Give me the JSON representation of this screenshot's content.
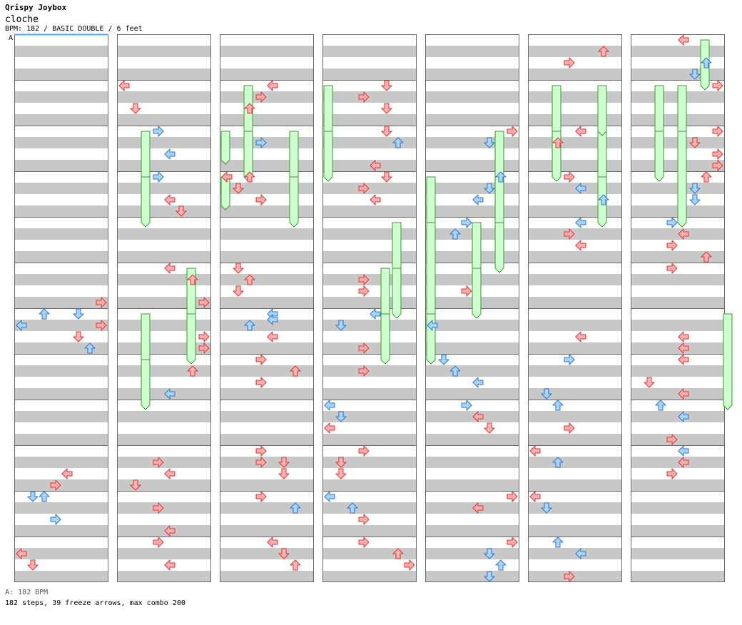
{
  "header": {
    "artist": "Qrispy Joybox",
    "title": "cloche",
    "info": "BPM: 182 / BASIC DOUBLE / 6 feet",
    "section_marker": "A"
  },
  "footer": {
    "bpm_line": "A: 182 BPM",
    "stats_line": "182 steps, 39 freeze arrows, max combo 200"
  },
  "colors": {
    "stripe_gray": "#c8c8c8",
    "measure_line": "#666666",
    "red_arrow_fill": "#ffb0b0",
    "red_arrow_stroke": "#e03030",
    "blue_arrow_fill": "#a8d4ff",
    "blue_arrow_stroke": "#2878c8",
    "freeze_fill": "#ccffcc",
    "freeze_stroke": "#3c963c",
    "bpm_marker": "#4da6ff"
  },
  "chart_data": {
    "type": "step-chart",
    "mode": "BASIC DOUBLE",
    "bpm": 182,
    "difficulty_feet": 6,
    "columns": 7,
    "measures_per_column": 12,
    "lanes": 8,
    "totals": {
      "steps": 182,
      "freeze_arrows": 39,
      "max_combo": 200
    },
    "freezes": [
      [
        0,
        40,
        4,
        4
      ],
      [
        0,
        40,
        5,
        4
      ],
      [
        0,
        32,
        5,
        4
      ],
      [
        0,
        32,
        6,
        4
      ],
      [
        1,
        2,
        6,
        4
      ],
      [
        1,
        2,
        7,
        4
      ],
      [
        1,
        6,
        5,
        4
      ],
      [
        1,
        6,
        6,
        4
      ],
      [
        1,
        2,
        2,
        4
      ],
      [
        1,
        2,
        3,
        4
      ],
      [
        2,
        0,
        2,
        0
      ],
      [
        2,
        0,
        3,
        0
      ],
      [
        2,
        2,
        1,
        4
      ],
      [
        2,
        2,
        2,
        4
      ],
      [
        2,
        6,
        2,
        4
      ],
      [
        2,
        6,
        3,
        4
      ],
      [
        3,
        0,
        1,
        4
      ],
      [
        3,
        0,
        2,
        4
      ],
      [
        3,
        6,
        4,
        4
      ],
      [
        3,
        6,
        5,
        4
      ],
      [
        4,
        0,
        3,
        4
      ],
      [
        4,
        0,
        4,
        4
      ],
      [
        4,
        0,
        4,
        12
      ],
      [
        4,
        0,
        6,
        4
      ],
      [
        4,
        6,
        2,
        4
      ],
      [
        4,
        6,
        3,
        4
      ],
      [
        4,
        6,
        4,
        4
      ],
      [
        5,
        6,
        2,
        4
      ],
      [
        5,
        6,
        3,
        4
      ],
      [
        5,
        2,
        1,
        4
      ],
      [
        5,
        2,
        2,
        4
      ],
      [
        5,
        6,
        1,
        4
      ],
      [
        6,
        6,
        0,
        0
      ],
      [
        6,
        6,
        0,
        4
      ],
      [
        6,
        2,
        1,
        4
      ],
      [
        6,
        2,
        2,
        4
      ],
      [
        6,
        4,
        1,
        8
      ],
      [
        6,
        4,
        2,
        8
      ],
      [
        6,
        8,
        6,
        8
      ]
    ]
  },
  "notes": [
    [
      0,
      5,
      6,
      7,
      "R"
    ],
    [
      0,
      5,
      8,
      5,
      "B"
    ],
    [
      0,
      5,
      10,
      0,
      "B"
    ],
    [
      0,
      6,
      0,
      2,
      "B"
    ],
    [
      0,
      6,
      2,
      7,
      "R"
    ],
    [
      0,
      6,
      4,
      5,
      "R"
    ],
    [
      0,
      6,
      6,
      6,
      "B"
    ],
    [
      0,
      9,
      4,
      4,
      "R"
    ],
    [
      0,
      9,
      6,
      3,
      "R"
    ],
    [
      0,
      9,
      8,
      2,
      "B"
    ],
    [
      0,
      10,
      0,
      1,
      "B"
    ],
    [
      0,
      10,
      4,
      3,
      "B"
    ],
    [
      0,
      11,
      2,
      0,
      "R"
    ],
    [
      0,
      11,
      4,
      1,
      "R"
    ],
    [
      1,
      1,
      0,
      0,
      "R"
    ],
    [
      1,
      1,
      4,
      1,
      "R"
    ],
    [
      1,
      2,
      0,
      3,
      "B"
    ],
    [
      1,
      2,
      4,
      4,
      "B"
    ],
    [
      1,
      3,
      0,
      3,
      "B"
    ],
    [
      1,
      3,
      4,
      4,
      "R"
    ],
    [
      1,
      3,
      6,
      5,
      "R"
    ],
    [
      1,
      5,
      0,
      4,
      "R"
    ],
    [
      1,
      5,
      2,
      6,
      "R"
    ],
    [
      1,
      5,
      6,
      7,
      "R"
    ],
    [
      1,
      6,
      4,
      7,
      "R"
    ],
    [
      1,
      6,
      6,
      7,
      "R"
    ],
    [
      1,
      7,
      2,
      6,
      "R"
    ],
    [
      1,
      7,
      6,
      4,
      "B"
    ],
    [
      1,
      9,
      4,
      4,
      "R"
    ],
    [
      1,
      9,
      2,
      3,
      "R"
    ],
    [
      1,
      9,
      6,
      1,
      "R"
    ],
    [
      1,
      10,
      2,
      3,
      "R"
    ],
    [
      1,
      10,
      6,
      4,
      "R"
    ],
    [
      1,
      11,
      0,
      3,
      "R"
    ],
    [
      1,
      11,
      4,
      4,
      "R"
    ],
    [
      2,
      1,
      0,
      4,
      "R"
    ],
    [
      2,
      1,
      2,
      3,
      "R"
    ],
    [
      2,
      1,
      4,
      2,
      "R"
    ],
    [
      2,
      2,
      2,
      3,
      "B"
    ],
    [
      2,
      3,
      0,
      0,
      "R"
    ],
    [
      2,
      3,
      0,
      2,
      "R"
    ],
    [
      2,
      3,
      2,
      1,
      "R"
    ],
    [
      2,
      3,
      4,
      3,
      "R"
    ],
    [
      2,
      5,
      0,
      1,
      "R"
    ],
    [
      2,
      5,
      2,
      2,
      "R"
    ],
    [
      2,
      5,
      4,
      1,
      "R"
    ],
    [
      2,
      6,
      0,
      4,
      "B"
    ],
    [
      2,
      6,
      1,
      4,
      "B"
    ],
    [
      2,
      6,
      2,
      2,
      "B"
    ],
    [
      2,
      6,
      4,
      4,
      "R"
    ],
    [
      2,
      7,
      0,
      3,
      "R"
    ],
    [
      2,
      7,
      2,
      6,
      "R"
    ],
    [
      2,
      7,
      4,
      3,
      "R"
    ],
    [
      2,
      9,
      0,
      3,
      "R"
    ],
    [
      2,
      9,
      2,
      3,
      "R"
    ],
    [
      2,
      9,
      2,
      5,
      "R"
    ],
    [
      2,
      9,
      4,
      5,
      "R"
    ],
    [
      2,
      10,
      0,
      3,
      "R"
    ],
    [
      2,
      10,
      2,
      6,
      "B"
    ],
    [
      2,
      11,
      0,
      4,
      "R"
    ],
    [
      2,
      11,
      2,
      5,
      "R"
    ],
    [
      2,
      11,
      4,
      6,
      "R"
    ],
    [
      3,
      1,
      0,
      5,
      "R"
    ],
    [
      3,
      1,
      2,
      3,
      "R"
    ],
    [
      3,
      1,
      4,
      5,
      "R"
    ],
    [
      3,
      2,
      0,
      5,
      "R"
    ],
    [
      3,
      2,
      2,
      6,
      "B"
    ],
    [
      3,
      2,
      6,
      4,
      "R"
    ],
    [
      3,
      3,
      0,
      5,
      "R"
    ],
    [
      3,
      3,
      2,
      3,
      "R"
    ],
    [
      3,
      3,
      4,
      4,
      "R"
    ],
    [
      3,
      5,
      2,
      3,
      "R"
    ],
    [
      3,
      5,
      4,
      3,
      "R"
    ],
    [
      3,
      6,
      0,
      4,
      "B"
    ],
    [
      3,
      6,
      2,
      1,
      "B"
    ],
    [
      3,
      6,
      6,
      3,
      "R"
    ],
    [
      3,
      7,
      2,
      3,
      "R"
    ],
    [
      3,
      8,
      0,
      0,
      "B"
    ],
    [
      3,
      8,
      2,
      1,
      "B"
    ],
    [
      3,
      8,
      4,
      0,
      "R"
    ],
    [
      3,
      9,
      0,
      3,
      "R"
    ],
    [
      3,
      9,
      2,
      1,
      "R"
    ],
    [
      3,
      9,
      4,
      1,
      "R"
    ],
    [
      3,
      10,
      0,
      0,
      "B"
    ],
    [
      3,
      10,
      2,
      2,
      "B"
    ],
    [
      3,
      10,
      4,
      3,
      "R"
    ],
    [
      3,
      11,
      0,
      3,
      "R"
    ],
    [
      3,
      11,
      2,
      6,
      "R"
    ],
    [
      3,
      11,
      4,
      7,
      "R"
    ],
    [
      4,
      2,
      0,
      7,
      "R"
    ],
    [
      4,
      2,
      2,
      5,
      "B"
    ],
    [
      4,
      3,
      0,
      6,
      "B"
    ],
    [
      4,
      3,
      2,
      5,
      "B"
    ],
    [
      4,
      3,
      4,
      4,
      "B"
    ],
    [
      4,
      4,
      0,
      3,
      "B"
    ],
    [
      4,
      4,
      2,
      2,
      "B"
    ],
    [
      4,
      5,
      4,
      3,
      "R"
    ],
    [
      4,
      6,
      2,
      0,
      "B"
    ],
    [
      4,
      7,
      0,
      1,
      "B"
    ],
    [
      4,
      7,
      2,
      2,
      "B"
    ],
    [
      4,
      7,
      4,
      4,
      "B"
    ],
    [
      4,
      8,
      0,
      3,
      "B"
    ],
    [
      4,
      8,
      2,
      4,
      "R"
    ],
    [
      4,
      8,
      4,
      5,
      "R"
    ],
    [
      4,
      10,
      0,
      7,
      "R"
    ],
    [
      4,
      10,
      2,
      4,
      "R"
    ],
    [
      4,
      11,
      0,
      7,
      "R"
    ],
    [
      4,
      11,
      2,
      5,
      "B"
    ],
    [
      4,
      11,
      4,
      6,
      "B"
    ],
    [
      4,
      11,
      6,
      5,
      "B"
    ],
    [
      5,
      0,
      2,
      6,
      "R"
    ],
    [
      5,
      0,
      4,
      3,
      "R"
    ],
    [
      5,
      2,
      0,
      4,
      "R"
    ],
    [
      5,
      2,
      2,
      2,
      "R"
    ],
    [
      5,
      3,
      0,
      3,
      "R"
    ],
    [
      5,
      3,
      2,
      4,
      "B"
    ],
    [
      5,
      3,
      4,
      6,
      "B"
    ],
    [
      5,
      4,
      0,
      4,
      "B"
    ],
    [
      5,
      4,
      2,
      3,
      "R"
    ],
    [
      5,
      4,
      4,
      4,
      "R"
    ],
    [
      5,
      6,
      4,
      4,
      "R"
    ],
    [
      5,
      7,
      0,
      3,
      "B"
    ],
    [
      5,
      7,
      6,
      1,
      "B"
    ],
    [
      5,
      8,
      0,
      2,
      "B"
    ],
    [
      5,
      8,
      4,
      3,
      "R"
    ],
    [
      5,
      9,
      0,
      0,
      "R"
    ],
    [
      5,
      9,
      2,
      2,
      "B"
    ],
    [
      5,
      10,
      0,
      0,
      "R"
    ],
    [
      5,
      10,
      2,
      1,
      "B"
    ],
    [
      5,
      11,
      0,
      2,
      "B"
    ],
    [
      5,
      11,
      2,
      4,
      "B"
    ],
    [
      5,
      11,
      6,
      3,
      "R"
    ],
    [
      6,
      0,
      0,
      4,
      "R"
    ],
    [
      6,
      0,
      4,
      6,
      "B"
    ],
    [
      6,
      0,
      6,
      5,
      "B"
    ],
    [
      6,
      1,
      0,
      7,
      "R"
    ],
    [
      6,
      2,
      0,
      7,
      "R"
    ],
    [
      6,
      2,
      2,
      5,
      "R"
    ],
    [
      6,
      2,
      4,
      7,
      "R"
    ],
    [
      6,
      2,
      6,
      7,
      "R"
    ],
    [
      6,
      3,
      0,
      6,
      "R"
    ],
    [
      6,
      3,
      2,
      5,
      "B"
    ],
    [
      6,
      3,
      4,
      5,
      "B"
    ],
    [
      6,
      4,
      0,
      3,
      "B"
    ],
    [
      6,
      4,
      2,
      4,
      "R"
    ],
    [
      6,
      4,
      4,
      3,
      "R"
    ],
    [
      6,
      4,
      6,
      6,
      "R"
    ],
    [
      6,
      5,
      0,
      3,
      "R"
    ],
    [
      6,
      6,
      4,
      4,
      "R"
    ],
    [
      6,
      6,
      6,
      4,
      "R"
    ],
    [
      6,
      7,
      0,
      4,
      "R"
    ],
    [
      6,
      7,
      4,
      1,
      "R"
    ],
    [
      6,
      7,
      6,
      4,
      "R"
    ],
    [
      6,
      8,
      0,
      2,
      "B"
    ],
    [
      6,
      8,
      2,
      4,
      "B"
    ],
    [
      6,
      8,
      6,
      3,
      "R"
    ],
    [
      6,
      9,
      0,
      4,
      "B"
    ],
    [
      6,
      9,
      2,
      4,
      "R"
    ],
    [
      6,
      9,
      4,
      3,
      "R"
    ]
  ]
}
